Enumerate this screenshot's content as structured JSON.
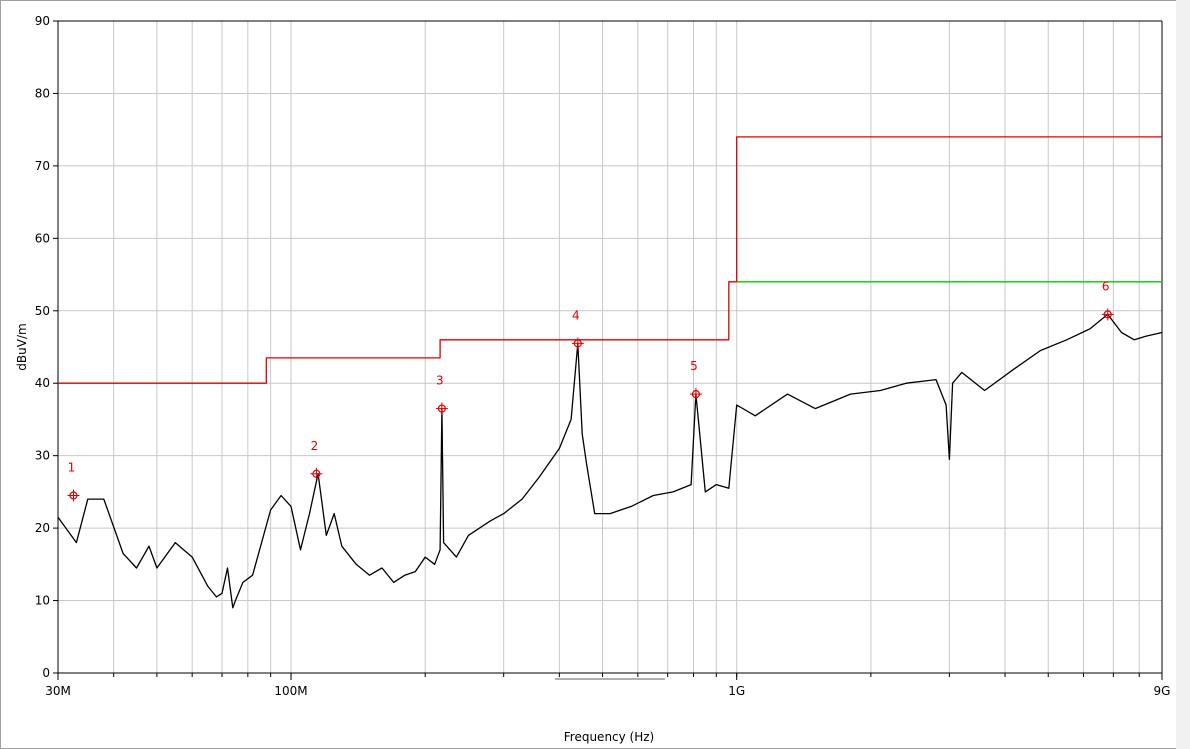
{
  "chart_data": {
    "type": "line",
    "title": "",
    "xlabel": "Frequency (Hz)",
    "ylabel": "dBuV/m",
    "x_scale": "log",
    "xlim": [
      30000000,
      9000000000
    ],
    "ylim": [
      0,
      90
    ],
    "grid": true,
    "x_ticks": [
      {
        "value": 30000000,
        "label": "30M"
      },
      {
        "value": 100000000,
        "label": "100M"
      },
      {
        "value": 1000000000,
        "label": "1G"
      },
      {
        "value": 9000000000,
        "label": "9G"
      }
    ],
    "y_ticks": [
      {
        "value": 0,
        "label": "0"
      },
      {
        "value": 10,
        "label": "10"
      },
      {
        "value": 20,
        "label": "20"
      },
      {
        "value": 30,
        "label": "30"
      },
      {
        "value": 40,
        "label": "40"
      },
      {
        "value": 50,
        "label": "50"
      },
      {
        "value": 60,
        "label": "60"
      },
      {
        "value": 70,
        "label": "70"
      },
      {
        "value": 80,
        "label": "80"
      },
      {
        "value": 90,
        "label": "90"
      }
    ],
    "series": [
      {
        "color": "#e00000",
        "step": true,
        "x": [
          30000000,
          88000000,
          88000000,
          216000000,
          216000000,
          960000000,
          960000000,
          1000000000,
          1000000000,
          9000000000
        ],
        "y": [
          40,
          40,
          43.5,
          43.5,
          46,
          46,
          54,
          54,
          74,
          74
        ]
      },
      {
        "color": "#00cc00",
        "x": [
          1000000000,
          9000000000
        ],
        "y": [
          54,
          54
        ]
      },
      {
        "color": "#000000",
        "x": [
          30000000,
          33000000,
          35000000,
          38000000,
          42000000,
          45000000,
          48000000,
          50000000,
          55000000,
          60000000,
          65000000,
          68000000,
          70000000,
          72000000,
          74000000,
          75000000,
          78000000,
          82000000,
          85000000,
          90000000,
          95000000,
          100000000,
          105000000,
          110000000,
          115000000,
          120000000,
          125000000,
          130000000,
          140000000,
          150000000,
          160000000,
          170000000,
          180000000,
          190000000,
          200000000,
          210000000,
          216000000,
          218000000,
          220000000,
          235000000,
          250000000,
          280000000,
          300000000,
          330000000,
          360000000,
          400000000,
          425000000,
          440000000,
          450000000,
          460000000,
          480000000,
          520000000,
          580000000,
          650000000,
          720000000,
          790000000,
          810000000,
          850000000,
          900000000,
          960000000,
          1000000000,
          1100000000,
          1300000000,
          1500000000,
          1800000000,
          2100000000,
          2400000000,
          2800000000,
          2950000000,
          3000000000,
          3050000000,
          3200000000,
          3600000000,
          4200000000,
          4800000000,
          5500000000,
          6200000000,
          6800000000,
          7300000000,
          7800000000,
          8300000000,
          9000000000
        ],
        "y": [
          21.5,
          18,
          24,
          24,
          16.5,
          14.5,
          17.5,
          14.5,
          18,
          16,
          12,
          10.5,
          11,
          14.5,
          9,
          10,
          12.5,
          13.5,
          17,
          22.5,
          24.5,
          23,
          17,
          22,
          27.5,
          19,
          22,
          17.5,
          15,
          13.5,
          14.5,
          12.5,
          13.5,
          14,
          16,
          15,
          17,
          36.5,
          18,
          16,
          19,
          21,
          22,
          24,
          27,
          31,
          35,
          45.5,
          33,
          29,
          22,
          22,
          23,
          24.5,
          25,
          26,
          38.5,
          25,
          26,
          25.5,
          37,
          35.5,
          38.5,
          36.5,
          38.5,
          39,
          40,
          40.5,
          37,
          29.5,
          40,
          41.5,
          39,
          42,
          44.5,
          46,
          47.5,
          49.5,
          47,
          46,
          46.5,
          47
        ]
      }
    ],
    "markers": [
      {
        "label": "1",
        "x": 32500000,
        "y": 24.5
      },
      {
        "label": "2",
        "x": 114000000,
        "y": 27.5
      },
      {
        "label": "3",
        "x": 218000000,
        "y": 36.5
      },
      {
        "label": "4",
        "x": 440000000,
        "y": 45.5
      },
      {
        "label": "5",
        "x": 810000000,
        "y": 38.5
      },
      {
        "label": "6",
        "x": 6800000000,
        "y": 49.5
      }
    ],
    "colors": {
      "grid": "#c8c8c8",
      "marker": "#e00000",
      "frame": "#a0a0a0"
    }
  }
}
